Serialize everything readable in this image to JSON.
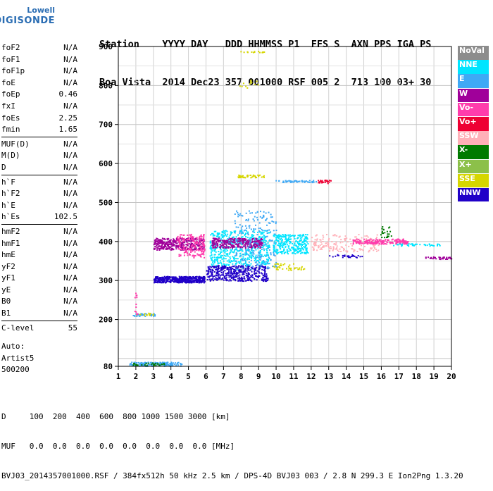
{
  "logo": {
    "line1": "Lowell",
    "line2": "DIGISONDE"
  },
  "header": {
    "line1": "Station    YYYY DAY   DDD HHMMSS P1  FFS S  AXN PPS IGA PS",
    "line2": "Boa Vista  2014 Dec23 357 001000 RSF 005 2  713 100 03+ 30"
  },
  "params": {
    "group1": [
      {
        "name": "foF2",
        "value": "N/A"
      },
      {
        "name": "foF1",
        "value": "N/A"
      },
      {
        "name": "foF1p",
        "value": "N/A"
      },
      {
        "name": "foE",
        "value": "N/A"
      },
      {
        "name": "foEp",
        "value": "0.46"
      },
      {
        "name": "fxI",
        "value": "N/A"
      },
      {
        "name": "foEs",
        "value": "2.25"
      },
      {
        "name": "fmin",
        "value": "1.65"
      }
    ],
    "group2": [
      {
        "name": "MUF(D)",
        "value": "N/A"
      },
      {
        "name": "M(D)",
        "value": "N/A"
      },
      {
        "name": "D",
        "value": "N/A"
      }
    ],
    "group3": [
      {
        "name": "h`F",
        "value": "N/A"
      },
      {
        "name": "h`F2",
        "value": "N/A"
      },
      {
        "name": "h`E",
        "value": "N/A"
      },
      {
        "name": "h`Es",
        "value": "102.5"
      }
    ],
    "group4": [
      {
        "name": "hmF2",
        "value": "N/A"
      },
      {
        "name": "hmF1",
        "value": "N/A"
      },
      {
        "name": "hmE",
        "value": "N/A"
      },
      {
        "name": "yF2",
        "value": "N/A"
      },
      {
        "name": "yF1",
        "value": "N/A"
      },
      {
        "name": "yE",
        "value": "N/A"
      },
      {
        "name": "B0",
        "value": "N/A"
      },
      {
        "name": "B1",
        "value": "N/A"
      }
    ],
    "group5": [
      {
        "name": "C-level",
        "value": "55"
      }
    ]
  },
  "auto": {
    "line1": "Auto:",
    "line2": "Artist5",
    "line3": "500200"
  },
  "legend": [
    {
      "label": "NoVal",
      "color": "#8c8c8c"
    },
    {
      "label": "NNE",
      "color": "#00e5ff"
    },
    {
      "label": "E",
      "color": "#3fa9f5"
    },
    {
      "label": "W",
      "color": "#a0009a"
    },
    {
      "label": "Vo-",
      "color": "#ff3cac"
    },
    {
      "label": "Vo+",
      "color": "#ee0033"
    },
    {
      "label": "SSW",
      "color": "#ffb0b8"
    },
    {
      "label": "X-",
      "color": "#007a00"
    },
    {
      "label": "X+",
      "color": "#8cc04a"
    },
    {
      "label": "SSE",
      "color": "#d6d600"
    },
    {
      "label": "NNW",
      "color": "#2000c8"
    }
  ],
  "footer": {
    "line1": "D     100  200  400  600  800 1000 1500 3000 [km]",
    "line2": "MUF   0.0  0.0  0.0  0.0  0.0  0.0  0.0  0.0 [MHz]",
    "line3": "BVJ03_2014357001000.RSF / 384fx512h 50 kHz 2.5 km / DPS-4D BVJ03 003 / 2.8 N 299.3 E Ion2Png 1.3.20"
  },
  "chart_data": {
    "type": "scatter",
    "title": "",
    "xlabel": "",
    "ylabel": "",
    "xlim": [
      1,
      20
    ],
    "ylim": [
      80,
      900
    ],
    "x_ticks": [
      1,
      2,
      3,
      4,
      5,
      6,
      7,
      8,
      9,
      10,
      11,
      12,
      13,
      14,
      15,
      16,
      17,
      18,
      19,
      20
    ],
    "y_ticks": [
      80,
      200,
      300,
      400,
      500,
      600,
      700,
      800,
      900
    ],
    "grid": true,
    "clusters": [
      {
        "series": "E",
        "x": [
          1.6,
          4.6
        ],
        "y": [
          82,
          92
        ],
        "count": 160
      },
      {
        "series": "X-",
        "x": [
          1.8,
          3.6
        ],
        "y": [
          84,
          90
        ],
        "count": 30
      },
      {
        "series": "E",
        "x": [
          1.8,
          3.1
        ],
        "y": [
          210,
          217
        ],
        "count": 40
      },
      {
        "series": "SSE",
        "x": [
          2.0,
          3.0
        ],
        "y": [
          212,
          218
        ],
        "count": 15
      },
      {
        "series": "Vo-",
        "x": [
          1.9,
          2.1
        ],
        "y": [
          215,
          270
        ],
        "count": 12
      },
      {
        "series": "NNW",
        "x": [
          3.0,
          5.9
        ],
        "y": [
          296,
          312
        ],
        "count": 500
      },
      {
        "series": "W",
        "x": [
          3.0,
          5.9
        ],
        "y": [
          380,
          410
        ],
        "count": 380
      },
      {
        "series": "Vo-",
        "x": [
          4.3,
          5.9
        ],
        "y": [
          360,
          420
        ],
        "count": 160
      },
      {
        "series": "NNW",
        "x": [
          6.0,
          9.5
        ],
        "y": [
          300,
          340
        ],
        "count": 420
      },
      {
        "series": "NNE",
        "x": [
          6.2,
          9.6
        ],
        "y": [
          340,
          430
        ],
        "count": 520
      },
      {
        "series": "W",
        "x": [
          6.3,
          9.2
        ],
        "y": [
          385,
          410
        ],
        "count": 300
      },
      {
        "series": "E",
        "x": [
          7.6,
          10.0
        ],
        "y": [
          330,
          480
        ],
        "count": 220
      },
      {
        "series": "SSE",
        "x": [
          7.8,
          9.3
        ],
        "y": [
          565,
          572
        ],
        "count": 45
      },
      {
        "series": "SSE",
        "x": [
          7.9,
          9.3
        ],
        "y": [
          885,
          890
        ],
        "count": 14
      },
      {
        "series": "SSE",
        "x": [
          7.9,
          9.0
        ],
        "y": [
          795,
          815
        ],
        "count": 14
      },
      {
        "series": "NNE",
        "x": [
          9.8,
          11.8
        ],
        "y": [
          370,
          420
        ],
        "count": 280
      },
      {
        "series": "SSE",
        "x": [
          9.8,
          11.6
        ],
        "y": [
          328,
          345
        ],
        "count": 40
      },
      {
        "series": "E",
        "x": [
          9.9,
          12.3
        ],
        "y": [
          553,
          558
        ],
        "count": 45
      },
      {
        "series": "Vo+",
        "x": [
          12.3,
          13.1
        ],
        "y": [
          550,
          560
        ],
        "count": 25
      },
      {
        "series": "SSW",
        "x": [
          12.0,
          15.9
        ],
        "y": [
          375,
          420
        ],
        "count": 180
      },
      {
        "series": "Vo-",
        "x": [
          14.3,
          17.5
        ],
        "y": [
          395,
          408
        ],
        "count": 180
      },
      {
        "series": "X-",
        "x": [
          15.9,
          16.6
        ],
        "y": [
          410,
          440
        ],
        "count": 25
      },
      {
        "series": "W",
        "x": [
          18.5,
          20.0
        ],
        "y": [
          356,
          362
        ],
        "count": 35
      },
      {
        "series": "NNE",
        "x": [
          16.5,
          19.4
        ],
        "y": [
          390,
          396
        ],
        "count": 40
      },
      {
        "series": "NNW",
        "x": [
          13.0,
          15.0
        ],
        "y": [
          360,
          368
        ],
        "count": 30
      }
    ]
  }
}
